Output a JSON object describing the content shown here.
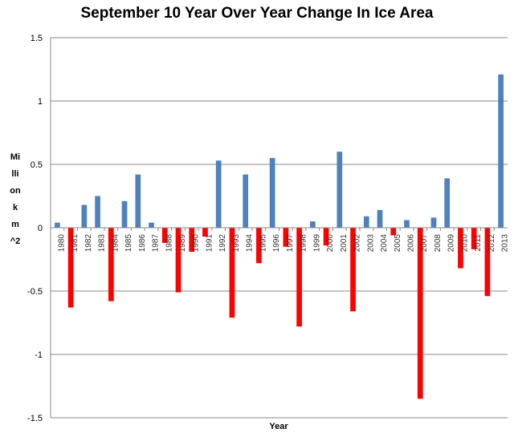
{
  "chart_data": {
    "type": "bar",
    "title": "September 10 Year Over Year Change In Ice Area",
    "xlabel": "Year",
    "ylabel": "Million km^2",
    "ylim": [
      -1.5,
      1.5
    ],
    "yticks": [
      -1.5,
      -1,
      -0.5,
      0,
      0.5,
      1,
      1.5
    ],
    "ytick_labels": [
      "-1.5",
      "-1",
      "-0.5",
      "0",
      "0.5",
      "1",
      "1.5"
    ],
    "grid": true,
    "colors": {
      "positive": "#4f81bd",
      "negative": "#ff0000"
    },
    "categories": [
      "1980",
      "1981",
      "1982",
      "1983",
      "1984",
      "1985",
      "1986",
      "1987",
      "1988",
      "1989",
      "1990",
      "1991",
      "1992",
      "1993",
      "1994",
      "1995",
      "1996",
      "1997",
      "1998",
      "1999",
      "2000",
      "2001",
      "2002",
      "2003",
      "2004",
      "2005",
      "2006",
      "2007",
      "2008",
      "2009",
      "2010",
      "2011",
      "2012",
      "2013"
    ],
    "values": [
      0.04,
      -0.63,
      0.18,
      0.25,
      -0.58,
      0.21,
      0.42,
      0.04,
      -0.12,
      -0.51,
      -0.19,
      -0.07,
      0.53,
      -0.71,
      0.42,
      -0.28,
      0.55,
      -0.15,
      -0.78,
      0.05,
      -0.14,
      0.6,
      -0.66,
      0.09,
      0.14,
      -0.06,
      0.06,
      -1.35,
      0.08,
      0.39,
      -0.32,
      -0.17,
      -0.54,
      1.21
    ]
  }
}
